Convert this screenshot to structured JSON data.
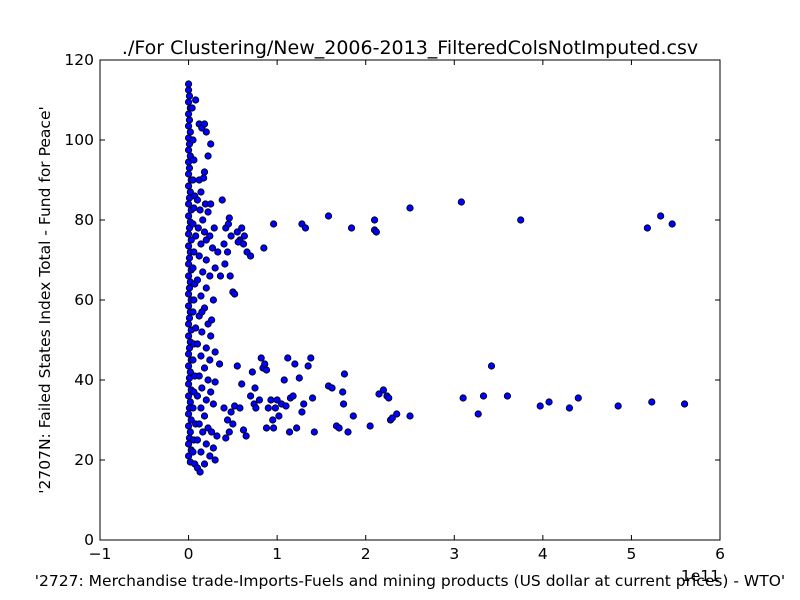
{
  "chart_data": {
    "type": "scatter",
    "title": "./For Clustering/New_2006-2013_FilteredColsNotImputed.csv",
    "xlabel": "'2727: Merchandise trade-Imports-Fuels and mining products (US dollar at current prices) - WTO'",
    "ylabel": "'2707N: Failed States Index Total - Fund for Peace'",
    "x_offset_label": "1e11",
    "x_scale": 100000000000,
    "xlim": [
      -1,
      6
    ],
    "ylim": [
      0,
      120
    ],
    "xticks": [
      -1,
      0,
      1,
      2,
      3,
      4,
      5,
      6
    ],
    "yticks": [
      0,
      20,
      40,
      60,
      80,
      100,
      120
    ],
    "xtick_labels": [
      "−1",
      "0",
      "1",
      "2",
      "3",
      "4",
      "5",
      "6"
    ],
    "ytick_labels": [
      "0",
      "20",
      "40",
      "60",
      "80",
      "100",
      "120"
    ],
    "grid": false,
    "legend": "none",
    "marker_color": "#0000ff",
    "marker_edge_color": "#000000",
    "series": [
      {
        "points": [
          [
            0.0,
            114.0
          ],
          [
            0.0,
            112.5
          ],
          [
            0.01,
            111.0
          ],
          [
            0.0,
            109.5
          ],
          [
            0.02,
            108.0
          ],
          [
            0.0,
            106.5
          ],
          [
            0.01,
            105.0
          ],
          [
            0.0,
            103.5
          ],
          [
            0.02,
            102.0
          ],
          [
            0.0,
            100.5
          ],
          [
            0.01,
            99.0
          ],
          [
            0.0,
            97.5
          ],
          [
            0.02,
            96.0
          ],
          [
            0.0,
            94.5
          ],
          [
            0.01,
            93.0
          ],
          [
            0.0,
            91.5
          ],
          [
            0.03,
            90.0
          ],
          [
            0.0,
            88.5
          ],
          [
            0.02,
            87.0
          ],
          [
            0.01,
            85.5
          ],
          [
            0.0,
            84.0
          ],
          [
            0.03,
            82.5
          ],
          [
            0.0,
            81.0
          ],
          [
            0.02,
            79.5
          ],
          [
            0.01,
            78.0
          ],
          [
            0.0,
            76.5
          ],
          [
            0.03,
            75.0
          ],
          [
            0.0,
            73.5
          ],
          [
            0.02,
            72.0
          ],
          [
            0.01,
            70.5
          ],
          [
            0.0,
            69.0
          ],
          [
            0.03,
            67.5
          ],
          [
            0.0,
            66.0
          ],
          [
            0.02,
            64.5
          ],
          [
            0.01,
            63.0
          ],
          [
            0.0,
            61.5
          ],
          [
            0.03,
            60.0
          ],
          [
            0.0,
            58.5
          ],
          [
            0.02,
            57.0
          ],
          [
            0.01,
            55.5
          ],
          [
            0.0,
            54.0
          ],
          [
            0.03,
            52.5
          ],
          [
            0.0,
            51.0
          ],
          [
            0.02,
            49.5
          ],
          [
            0.01,
            48.0
          ],
          [
            0.0,
            46.5
          ],
          [
            0.03,
            45.0
          ],
          [
            0.0,
            43.5
          ],
          [
            0.02,
            42.0
          ],
          [
            0.01,
            40.5
          ],
          [
            0.0,
            39.0
          ],
          [
            0.03,
            37.5
          ],
          [
            0.0,
            36.0
          ],
          [
            0.02,
            34.5
          ],
          [
            0.01,
            33.0
          ],
          [
            0.0,
            31.5
          ],
          [
            0.03,
            30.0
          ],
          [
            0.0,
            28.5
          ],
          [
            0.02,
            27.0
          ],
          [
            0.01,
            25.5
          ],
          [
            0.0,
            24.0
          ],
          [
            0.03,
            22.5
          ],
          [
            0.0,
            21.0
          ],
          [
            0.02,
            19.5
          ],
          [
            0.05,
            100.0
          ],
          [
            0.06,
            95.0
          ],
          [
            0.05,
            90.0
          ],
          [
            0.07,
            86.0
          ],
          [
            0.06,
            83.0
          ],
          [
            0.05,
            79.0
          ],
          [
            0.08,
            76.0
          ],
          [
            0.06,
            72.0
          ],
          [
            0.05,
            68.0
          ],
          [
            0.07,
            64.0
          ],
          [
            0.06,
            60.0
          ],
          [
            0.05,
            57.0
          ],
          [
            0.08,
            53.0
          ],
          [
            0.06,
            49.0
          ],
          [
            0.05,
            45.0
          ],
          [
            0.07,
            41.0
          ],
          [
            0.06,
            37.0
          ],
          [
            0.05,
            33.0
          ],
          [
            0.08,
            29.0
          ],
          [
            0.06,
            25.0
          ],
          [
            0.05,
            22.0
          ],
          [
            0.07,
            19.0
          ],
          [
            0.12,
            104.0
          ],
          [
            0.15,
            103.0
          ],
          [
            0.18,
            104.0
          ],
          [
            0.2,
            102.0
          ],
          [
            0.12,
            90.0
          ],
          [
            0.17,
            90.5
          ],
          [
            0.14,
            87.0
          ],
          [
            0.1,
            85.0
          ],
          [
            0.19,
            84.0
          ],
          [
            0.13,
            82.5
          ],
          [
            0.22,
            82.0
          ],
          [
            0.16,
            80.0
          ],
          [
            0.25,
            84.0
          ],
          [
            0.11,
            78.0
          ],
          [
            0.18,
            77.0
          ],
          [
            0.24,
            76.0
          ],
          [
            0.29,
            78.0
          ],
          [
            0.2,
            75.0
          ],
          [
            0.14,
            74.0
          ],
          [
            0.27,
            73.0
          ],
          [
            0.33,
            72.0
          ],
          [
            0.12,
            71.0
          ],
          [
            0.2,
            70.0
          ],
          [
            0.3,
            68.0
          ],
          [
            0.16,
            67.0
          ],
          [
            0.24,
            66.0
          ],
          [
            0.36,
            66.0
          ],
          [
            0.1,
            65.0
          ],
          [
            0.2,
            63.0
          ],
          [
            0.14,
            61.0
          ],
          [
            0.28,
            60.0
          ],
          [
            0.18,
            58.0
          ],
          [
            0.12,
            56.0
          ],
          [
            0.22,
            54.0
          ],
          [
            0.15,
            52.0
          ],
          [
            0.25,
            51.0
          ],
          [
            0.1,
            49.0
          ],
          [
            0.2,
            48.0
          ],
          [
            0.3,
            47.0
          ],
          [
            0.14,
            46.0
          ],
          [
            0.24,
            45.0
          ],
          [
            0.35,
            44.0
          ],
          [
            0.18,
            43.0
          ],
          [
            0.12,
            41.0
          ],
          [
            0.22,
            40.0
          ],
          [
            0.3,
            39.5
          ],
          [
            0.15,
            38.0
          ],
          [
            0.25,
            37.0
          ],
          [
            0.1,
            36.0
          ],
          [
            0.2,
            35.0
          ],
          [
            0.28,
            34.0
          ],
          [
            0.14,
            33.0
          ],
          [
            0.18,
            31.0
          ],
          [
            0.12,
            29.0
          ],
          [
            0.22,
            28.0
          ],
          [
            0.16,
            27.0
          ],
          [
            0.26,
            27.0
          ],
          [
            0.32,
            26.0
          ],
          [
            0.1,
            25.0
          ],
          [
            0.2,
            24.0
          ],
          [
            0.28,
            23.0
          ],
          [
            0.14,
            22.0
          ],
          [
            0.24,
            21.0
          ],
          [
            0.3,
            20.0
          ],
          [
            0.18,
            19.0
          ],
          [
            0.1,
            18.0
          ],
          [
            0.13,
            17.0
          ],
          [
            0.38,
            85.0
          ],
          [
            0.42,
            78.0
          ],
          [
            0.4,
            74.0
          ],
          [
            0.45,
            79.0
          ],
          [
            0.48,
            76.0
          ],
          [
            0.44,
            72.0
          ],
          [
            0.41,
            69.0
          ],
          [
            0.47,
            66.0
          ],
          [
            0.5,
            62.0
          ],
          [
            0.52,
            61.5
          ],
          [
            0.46,
            80.5
          ],
          [
            0.55,
            77.0
          ],
          [
            0.58,
            75.0
          ],
          [
            0.6,
            78.0
          ],
          [
            0.63,
            76.0
          ],
          [
            0.66,
            72.0
          ],
          [
            0.7,
            71.0
          ],
          [
            0.56,
            74.5
          ],
          [
            0.62,
            74.0
          ],
          [
            0.4,
            33.0
          ],
          [
            0.44,
            30.0
          ],
          [
            0.48,
            32.0
          ],
          [
            0.52,
            33.5
          ],
          [
            0.46,
            27.0
          ],
          [
            0.42,
            25.5
          ],
          [
            0.5,
            29.0
          ],
          [
            0.55,
            43.5
          ],
          [
            0.58,
            33.0
          ],
          [
            0.6,
            39.0
          ],
          [
            0.62,
            27.5
          ],
          [
            0.65,
            26.0
          ],
          [
            0.7,
            36.0
          ],
          [
            0.72,
            42.0
          ],
          [
            0.74,
            34.0
          ],
          [
            0.76,
            33.0
          ],
          [
            0.8,
            35.0
          ],
          [
            0.82,
            45.5
          ],
          [
            0.84,
            43.0
          ],
          [
            0.86,
            44.0
          ],
          [
            0.88,
            42.5
          ],
          [
            0.9,
            33.0
          ],
          [
            0.93,
            35.0
          ],
          [
            0.96,
            28.0
          ],
          [
            0.98,
            33.0
          ],
          [
            1.0,
            35.0
          ],
          [
            1.05,
            34.0
          ],
          [
            1.1,
            33.5
          ],
          [
            1.15,
            35.5
          ],
          [
            1.12,
            45.5
          ],
          [
            1.14,
            27.0
          ],
          [
            1.18,
            36.0
          ],
          [
            1.2,
            44.0
          ],
          [
            1.22,
            28.0
          ],
          [
            1.25,
            40.5
          ],
          [
            1.28,
            32.0
          ],
          [
            1.3,
            34.0
          ],
          [
            1.35,
            43.5
          ],
          [
            1.38,
            45.5
          ],
          [
            1.4,
            35.5
          ],
          [
            1.42,
            27.0
          ],
          [
            0.95,
            30.0
          ],
          [
            1.08,
            40.0
          ],
          [
            1.02,
            31.0
          ],
          [
            0.75,
            38.0
          ],
          [
            0.88,
            28.0
          ],
          [
            1.58,
            38.5
          ],
          [
            1.62,
            38.0
          ],
          [
            1.67,
            28.5
          ],
          [
            1.7,
            28.0
          ],
          [
            1.74,
            37.0
          ],
          [
            1.75,
            34.0
          ],
          [
            1.76,
            41.5
          ],
          [
            1.8,
            27.0
          ],
          [
            1.86,
            31.0
          ],
          [
            2.05,
            28.5
          ],
          [
            2.15,
            36.5
          ],
          [
            2.2,
            37.5
          ],
          [
            2.24,
            36.0
          ],
          [
            2.26,
            35.5
          ],
          [
            2.28,
            30.0
          ],
          [
            2.3,
            30.5
          ],
          [
            2.35,
            31.5
          ],
          [
            2.5,
            31.0
          ],
          [
            3.1,
            35.5
          ],
          [
            3.27,
            31.5
          ],
          [
            3.33,
            36.0
          ],
          [
            3.42,
            43.5
          ],
          [
            3.6,
            36.0
          ],
          [
            3.97,
            33.5
          ],
          [
            4.07,
            34.5
          ],
          [
            4.3,
            33.0
          ],
          [
            4.4,
            35.5
          ],
          [
            4.85,
            33.5
          ],
          [
            5.23,
            34.5
          ],
          [
            5.6,
            34.0
          ],
          [
            0.96,
            79.0
          ],
          [
            1.28,
            79.0
          ],
          [
            1.32,
            78.0
          ],
          [
            1.58,
            81.0
          ],
          [
            1.84,
            78.0
          ],
          [
            2.1,
            80.0
          ],
          [
            2.1,
            77.5
          ],
          [
            2.12,
            77.0
          ],
          [
            2.5,
            83.0
          ],
          [
            3.08,
            84.5
          ],
          [
            3.75,
            80.0
          ],
          [
            5.18,
            78.0
          ],
          [
            5.33,
            81.0
          ],
          [
            5.46,
            79.0
          ],
          [
            0.85,
            73.0
          ],
          [
            0.18,
            92.0
          ],
          [
            0.22,
            96.0
          ],
          [
            0.25,
            99.0
          ],
          [
            0.08,
            110.0
          ],
          [
            0.04,
            108.0
          ],
          [
            0.15,
            57.0
          ],
          [
            0.26,
            55.0
          ]
        ]
      }
    ]
  }
}
